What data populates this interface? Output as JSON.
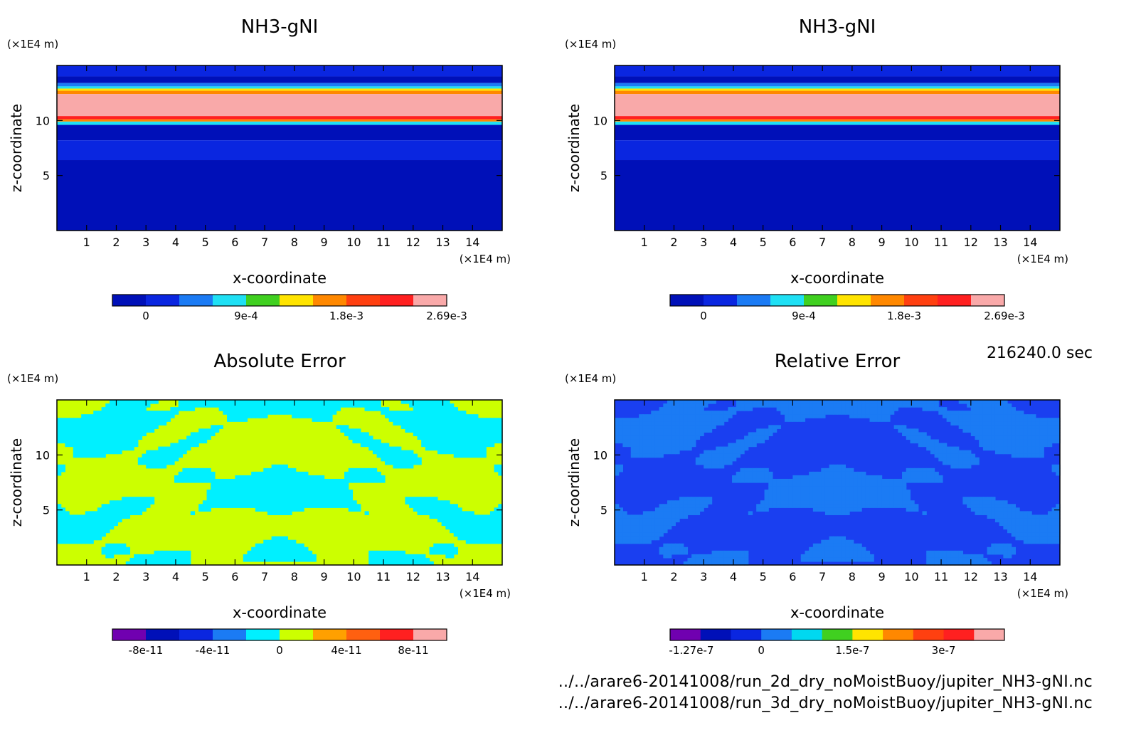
{
  "time_label": "216240.0 sec",
  "footer": {
    "file_1": "../../arare6-20141008/run_2d_dry_noMoistBuoy/jupiter_NH3-gNI.nc",
    "file_2": "../../arare6-20141008/run_3d_dry_noMoistBuoy/jupiter_NH3-gNI.nc"
  },
  "chart_data": [
    {
      "type": "heatmap",
      "title": "NH3-gNI",
      "xlabel": "x-coordinate",
      "ylabel": "z-coordinate",
      "x_unit": "(×1E4 m)",
      "y_unit": "(×1E4 m)",
      "xlim": [
        0,
        15
      ],
      "ylim": [
        0,
        15
      ],
      "x_ticks": [
        1,
        2,
        3,
        4,
        5,
        6,
        7,
        8,
        9,
        10,
        11,
        12,
        13,
        14
      ],
      "y_ticks": [
        5,
        10
      ],
      "bands": [
        {
          "z_top": 15.0,
          "z_bot": 14.0,
          "color": "#0a26e0"
        },
        {
          "z_top": 14.0,
          "z_bot": 13.4,
          "color": "#0010b8"
        },
        {
          "z_top": 13.4,
          "z_bot": 13.1,
          "color": "#1b7bf4"
        },
        {
          "z_top": 13.1,
          "z_bot": 12.9,
          "color": "#1fe0f4"
        },
        {
          "z_top": 12.9,
          "z_bot": 12.7,
          "color": "#ffe400"
        },
        {
          "z_top": 12.7,
          "z_bot": 12.4,
          "color": "#ff8800"
        },
        {
          "z_top": 12.4,
          "z_bot": 10.4,
          "color": "#f9a9a9"
        },
        {
          "z_top": 10.4,
          "z_bot": 10.1,
          "color": "#ff2020"
        },
        {
          "z_top": 10.1,
          "z_bot": 9.9,
          "color": "#ff8800"
        },
        {
          "z_top": 9.9,
          "z_bot": 9.6,
          "color": "#1fe0f4"
        },
        {
          "z_top": 9.6,
          "z_bot": 8.2,
          "color": "#0010b8"
        },
        {
          "z_top": 8.2,
          "z_bot": 6.4,
          "color": "#0a26e0"
        },
        {
          "z_top": 6.4,
          "z_bot": 0.0,
          "color": "#0010b8"
        }
      ],
      "colorbar": {
        "colors": [
          "#0010b8",
          "#0a26e0",
          "#1b7bf4",
          "#1fe0f4",
          "#40d020",
          "#ffe400",
          "#ff8800",
          "#ff4010",
          "#ff2020",
          "#f9a9a9"
        ],
        "tick_labels": [
          "0",
          "9e-4",
          "1.8e-3",
          "2.69e-3"
        ]
      }
    },
    {
      "type": "heatmap",
      "title": "NH3-gNI",
      "xlabel": "x-coordinate",
      "ylabel": "z-coordinate",
      "x_unit": "(×1E4 m)",
      "y_unit": "(×1E4 m)",
      "xlim": [
        0,
        15
      ],
      "ylim": [
        0,
        15
      ],
      "x_ticks": [
        1,
        2,
        3,
        4,
        5,
        6,
        7,
        8,
        9,
        10,
        11,
        12,
        13,
        14
      ],
      "y_ticks": [
        5,
        10
      ],
      "bands": [
        {
          "z_top": 15.0,
          "z_bot": 14.0,
          "color": "#0a26e0"
        },
        {
          "z_top": 14.0,
          "z_bot": 13.4,
          "color": "#0010b8"
        },
        {
          "z_top": 13.4,
          "z_bot": 13.1,
          "color": "#1b7bf4"
        },
        {
          "z_top": 13.1,
          "z_bot": 12.9,
          "color": "#1fe0f4"
        },
        {
          "z_top": 12.9,
          "z_bot": 12.7,
          "color": "#ffe400"
        },
        {
          "z_top": 12.7,
          "z_bot": 12.4,
          "color": "#ff8800"
        },
        {
          "z_top": 12.4,
          "z_bot": 10.4,
          "color": "#f9a9a9"
        },
        {
          "z_top": 10.4,
          "z_bot": 10.1,
          "color": "#ff2020"
        },
        {
          "z_top": 10.1,
          "z_bot": 9.9,
          "color": "#ff8800"
        },
        {
          "z_top": 9.9,
          "z_bot": 9.6,
          "color": "#1fe0f4"
        },
        {
          "z_top": 9.6,
          "z_bot": 8.2,
          "color": "#0010b8"
        },
        {
          "z_top": 8.2,
          "z_bot": 6.4,
          "color": "#0a26e0"
        },
        {
          "z_top": 6.4,
          "z_bot": 0.0,
          "color": "#0010b8"
        }
      ],
      "colorbar": {
        "colors": [
          "#0010b8",
          "#0a26e0",
          "#1b7bf4",
          "#1fe0f4",
          "#40d020",
          "#ffe400",
          "#ff8800",
          "#ff4010",
          "#ff2020",
          "#f9a9a9"
        ],
        "tick_labels": [
          "0",
          "9e-4",
          "1.8e-3",
          "2.69e-3"
        ]
      }
    },
    {
      "type": "heatmap",
      "title": "Absolute Error",
      "xlabel": "x-coordinate",
      "ylabel": "z-coordinate",
      "x_unit": "(×1E4 m)",
      "y_unit": "(×1E4 m)",
      "xlim": [
        0,
        15
      ],
      "ylim": [
        0,
        15
      ],
      "x_ticks": [
        1,
        2,
        3,
        4,
        5,
        6,
        7,
        8,
        9,
        10,
        11,
        12,
        13,
        14
      ],
      "y_ticks": [
        5,
        10
      ],
      "pattern": "mottled",
      "base_color": "#ccff00",
      "alt_color": "#00f0ff",
      "colorbar": {
        "colors": [
          "#7000b0",
          "#0010b8",
          "#0a26e0",
          "#1b7bf4",
          "#00f0ff",
          "#ccff00",
          "#ffa000",
          "#ff6010",
          "#ff2020",
          "#f9a9a9"
        ],
        "tick_labels": [
          "-8e-11",
          "-4e-11",
          "0",
          "4e-11",
          "8e-11"
        ]
      }
    },
    {
      "type": "heatmap",
      "title": "Relative Error",
      "xlabel": "x-coordinate",
      "ylabel": "z-coordinate",
      "x_unit": "(×1E4 m)",
      "y_unit": "(×1E4 m)",
      "xlim": [
        0,
        15
      ],
      "ylim": [
        0,
        15
      ],
      "x_ticks": [
        1,
        2,
        3,
        4,
        5,
        6,
        7,
        8,
        9,
        10,
        11,
        12,
        13,
        14
      ],
      "y_ticks": [
        5,
        10
      ],
      "pattern": "mottled",
      "base_color": "#1a3ff0",
      "alt_color": "#1b7bf4",
      "colorbar": {
        "colors": [
          "#7000b0",
          "#0010b8",
          "#0a26e0",
          "#1b7bf4",
          "#00d8f0",
          "#40d020",
          "#ffe400",
          "#ff8800",
          "#ff4010",
          "#ff2020",
          "#f9a9a9"
        ],
        "tick_labels": [
          "-1.27e-7",
          "0",
          "1.5e-7",
          "3e-7"
        ]
      }
    }
  ]
}
